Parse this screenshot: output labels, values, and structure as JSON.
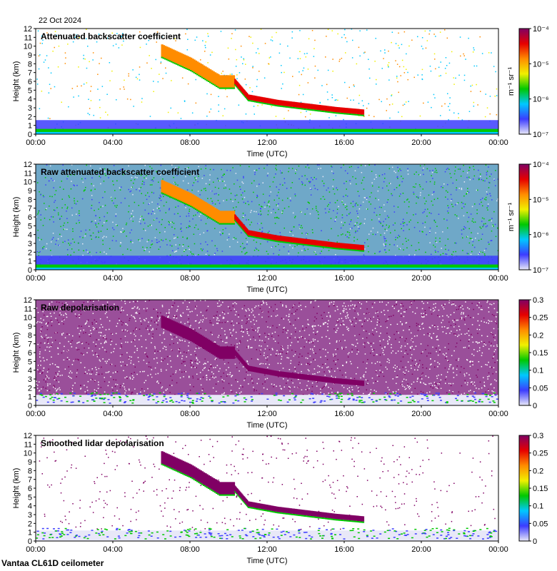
{
  "date_label": "22 Oct 2024",
  "footer_label": "Vantaa CL61D ceilometer",
  "colors": {
    "clear": "#ffffff",
    "scale": [
      "#e8e8f8",
      "#3c3cff",
      "#00c8ff",
      "#00c800",
      "#f0f000",
      "#ff8c00",
      "#e60000",
      "#800064"
    ]
  },
  "chart_data": [
    {
      "type": "heatmap",
      "title": "Attenuated backscatter coefficient",
      "xlabel": "Time (UTC)",
      "ylabel": "Height (km)",
      "x_ticks": [
        "00:00",
        "04:00",
        "08:00",
        "12:00",
        "16:00",
        "20:00",
        "00:00"
      ],
      "y_ticks": [
        "0",
        "1",
        "2",
        "3",
        "4",
        "5",
        "6",
        "7",
        "8",
        "9",
        "10",
        "11",
        "12"
      ],
      "ylim": [
        0,
        12
      ],
      "colorbar": {
        "scale": "log",
        "unit": "m⁻¹ sr⁻¹",
        "ticks": [
          "10⁻⁷",
          "10⁻⁶",
          "10⁻⁵",
          "10⁻⁴"
        ],
        "range": [
          1e-07,
          0.0001
        ]
      }
    },
    {
      "type": "heatmap",
      "title": "Raw attenuated backscatter coefficient",
      "xlabel": "Time (UTC)",
      "ylabel": "Height (km)",
      "x_ticks": [
        "00:00",
        "04:00",
        "08:00",
        "12:00",
        "16:00",
        "20:00",
        "00:00"
      ],
      "y_ticks": [
        "0",
        "1",
        "2",
        "3",
        "4",
        "5",
        "6",
        "7",
        "8",
        "9",
        "10",
        "11",
        "12"
      ],
      "ylim": [
        0,
        12
      ],
      "colorbar": {
        "scale": "log",
        "unit": "m⁻¹ sr⁻¹",
        "ticks": [
          "10⁻⁷",
          "10⁻⁶",
          "10⁻⁵",
          "10⁻⁴"
        ],
        "range": [
          1e-07,
          0.0001
        ]
      }
    },
    {
      "type": "heatmap",
      "title": "Raw depolarisation",
      "xlabel": "Time (UTC)",
      "ylabel": "Height (km)",
      "x_ticks": [
        "00:00",
        "04:00",
        "08:00",
        "12:00",
        "16:00",
        "20:00",
        "00:00"
      ],
      "y_ticks": [
        "0",
        "1",
        "2",
        "3",
        "4",
        "5",
        "6",
        "7",
        "8",
        "9",
        "10",
        "11",
        "12"
      ],
      "ylim": [
        0,
        12
      ],
      "colorbar": {
        "scale": "linear",
        "unit": "",
        "ticks": [
          "0",
          "0.05",
          "0.1",
          "0.15",
          "0.2",
          "0.25",
          "0.3"
        ],
        "range": [
          0,
          0.3
        ]
      }
    },
    {
      "type": "heatmap",
      "title": "Smoothed lidar depolarisation",
      "xlabel": "Time (UTC)",
      "ylabel": "Height (km)",
      "x_ticks": [
        "00:00",
        "04:00",
        "08:00",
        "12:00",
        "16:00",
        "20:00",
        "00:00"
      ],
      "y_ticks": [
        "0",
        "1",
        "2",
        "3",
        "4",
        "5",
        "6",
        "7",
        "8",
        "9",
        "10",
        "11",
        "12"
      ],
      "ylim": [
        0,
        12
      ],
      "colorbar": {
        "scale": "linear",
        "unit": "",
        "ticks": [
          "0",
          "0.05",
          "0.1",
          "0.15",
          "0.2",
          "0.25",
          "0.3"
        ],
        "range": [
          0,
          0.3
        ]
      }
    }
  ]
}
